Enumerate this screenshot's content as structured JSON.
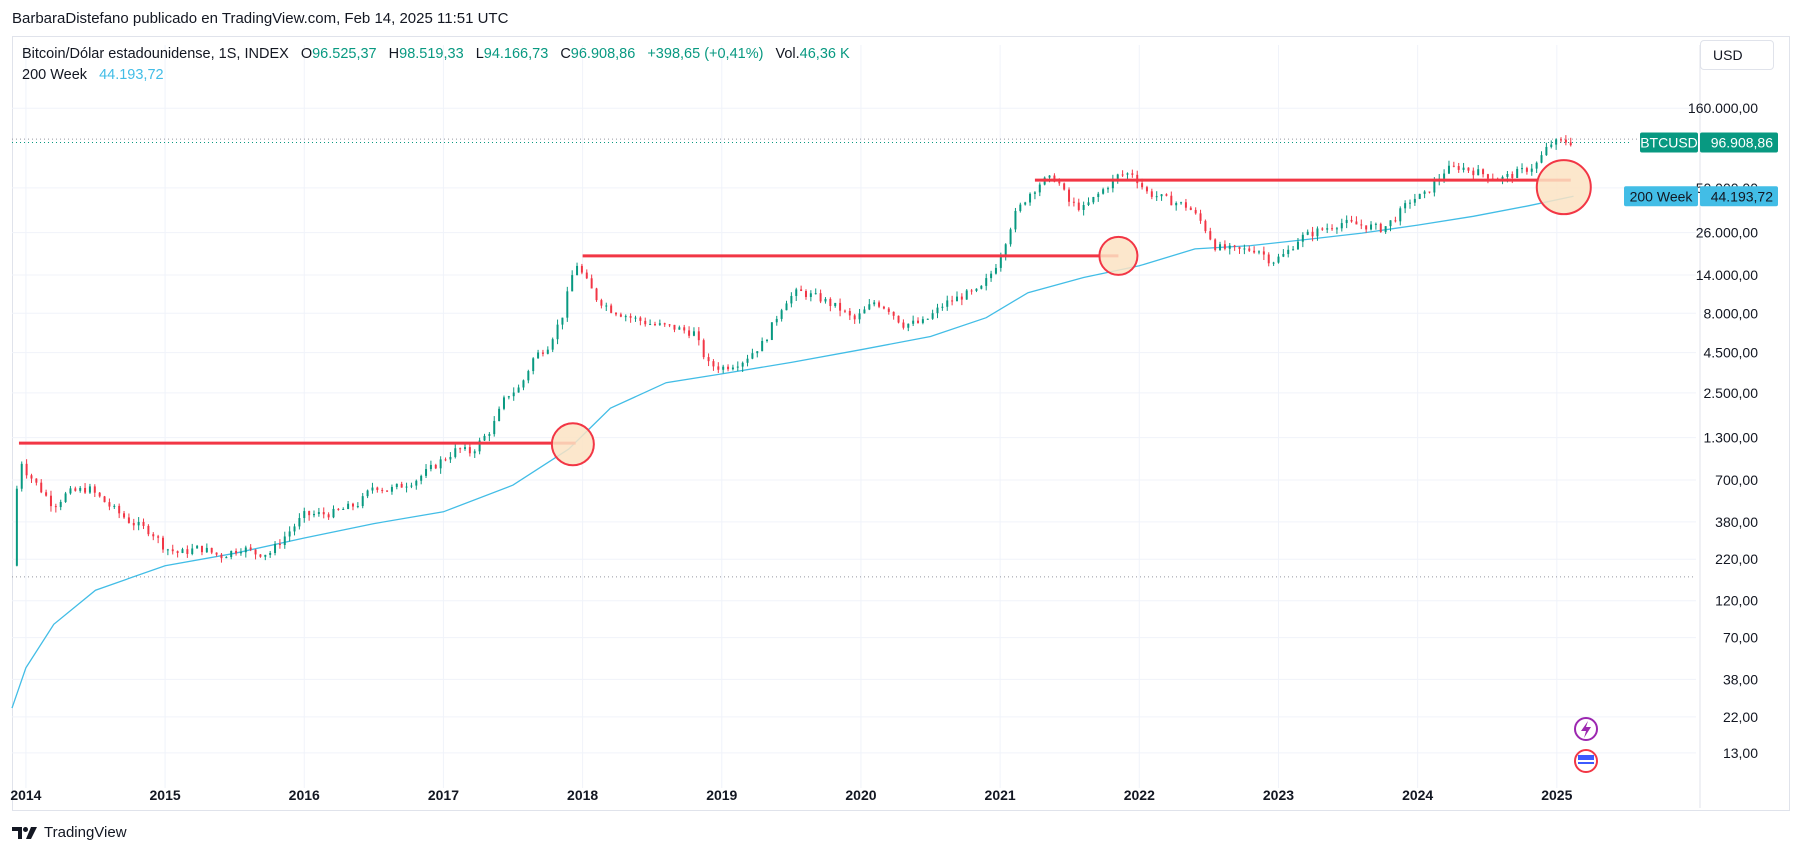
{
  "header": {
    "published": "BarbaraDistefano publicado en TradingView.com, Feb 14, 2025 11:51 UTC"
  },
  "legend": {
    "symbol": "Bitcoin/Dólar estadounidense, 1S, INDEX",
    "o_label": "O",
    "o_value": "96.525,37",
    "h_label": "H",
    "h_value": "98.519,33",
    "l_label": "L",
    "l_value": "94.166,73",
    "c_label": "C",
    "c_value": "96.908,86",
    "change": "+398,65 (+0,41%)",
    "vol_label": "Vol.",
    "vol_value": "46,36 K",
    "ma_label": "200 Week",
    "ma_value": "44.193,72"
  },
  "currency_button": "USD",
  "footer": {
    "brand": "TradingView"
  },
  "colors": {
    "up": "#089981",
    "down": "#f23645",
    "ma": "#42bde6",
    "resistance": "#f23645",
    "circle_fill": "#fbe3c3"
  },
  "chart_data": {
    "type": "line",
    "title": "Bitcoin/Dólar estadounidense, 1S, INDEX",
    "y_scale": "log",
    "ylim": [
      9,
      260000
    ],
    "xlim": [
      2013.9,
      2026.0
    ],
    "y_ticks": [
      {
        "value": 160000,
        "label": "160.000,00"
      },
      {
        "value": 50000,
        "label": "50.000,00"
      },
      {
        "value": 26000,
        "label": "26.000,00"
      },
      {
        "value": 14000,
        "label": "14.000,00"
      },
      {
        "value": 8000,
        "label": "8.000,00"
      },
      {
        "value": 4500,
        "label": "4.500,00"
      },
      {
        "value": 2500,
        "label": "2.500,00"
      },
      {
        "value": 1300,
        "label": "1.300,00"
      },
      {
        "value": 700,
        "label": "700,00"
      },
      {
        "value": 380,
        "label": "380,00"
      },
      {
        "value": 220,
        "label": "220,00"
      },
      {
        "value": 120,
        "label": "120,00"
      },
      {
        "value": 70,
        "label": "70,00"
      },
      {
        "value": 38,
        "label": "38,00"
      },
      {
        "value": 22,
        "label": "22,00"
      },
      {
        "value": 13,
        "label": "13,00"
      }
    ],
    "x_ticks": [
      "2014",
      "2015",
      "2016",
      "2017",
      "2018",
      "2019",
      "2020",
      "2021",
      "2022",
      "2023",
      "2024",
      "2025"
    ],
    "series": [
      {
        "name": "BTCUSD",
        "last_label": "96.908,86",
        "x": [
          2013.9,
          2013.95,
          2014.0,
          2014.1,
          2014.2,
          2014.3,
          2014.45,
          2014.6,
          2014.75,
          2014.9,
          2015.0,
          2015.1,
          2015.25,
          2015.4,
          2015.55,
          2015.65,
          2015.75,
          2015.85,
          2016.0,
          2016.2,
          2016.4,
          2016.5,
          2016.6,
          2016.8,
          2017.0,
          2017.1,
          2017.2,
          2017.35,
          2017.45,
          2017.55,
          2017.65,
          2017.75,
          2017.85,
          2017.95,
          2018.0,
          2018.1,
          2018.2,
          2018.35,
          2018.5,
          2018.65,
          2018.8,
          2018.9,
          2019.0,
          2019.15,
          2019.3,
          2019.45,
          2019.55,
          2019.7,
          2019.85,
          2019.95,
          2020.1,
          2020.2,
          2020.3,
          2020.45,
          2020.6,
          2020.75,
          2020.85,
          2020.95,
          2021.0,
          2021.1,
          2021.2,
          2021.3,
          2021.4,
          2021.5,
          2021.6,
          2021.7,
          2021.85,
          2021.95,
          2022.05,
          2022.2,
          2022.35,
          2022.45,
          2022.55,
          2022.7,
          2022.85,
          2022.95,
          2023.05,
          2023.15,
          2023.3,
          2023.45,
          2023.6,
          2023.75,
          2023.85,
          2023.95,
          2024.05,
          2024.2,
          2024.3,
          2024.45,
          2024.6,
          2024.75,
          2024.85,
          2024.95,
          2025.05,
          2025.12
        ],
        "values": [
          200,
          1000,
          800,
          620,
          480,
          580,
          620,
          480,
          380,
          330,
          260,
          240,
          260,
          230,
          260,
          240,
          240,
          300,
          420,
          430,
          500,
          650,
          600,
          700,
          950,
          1100,
          1050,
          1500,
          2400,
          2700,
          4200,
          5000,
          7500,
          17000,
          14000,
          10000,
          8500,
          7500,
          6800,
          6500,
          6000,
          3800,
          3600,
          4000,
          5200,
          9500,
          11000,
          10000,
          8500,
          7200,
          9500,
          8500,
          6800,
          7000,
          9200,
          10500,
          11000,
          15000,
          18500,
          33000,
          45000,
          55000,
          58000,
          40000,
          37000,
          45000,
          60000,
          62000,
          47000,
          42000,
          38000,
          30000,
          21000,
          20000,
          20500,
          17000,
          19000,
          24000,
          27000,
          30000,
          29000,
          27500,
          33000,
          42000,
          45000,
          65000,
          68000,
          62000,
          57000,
          64000,
          70000,
          95000,
          99000,
          96908.86
        ]
      },
      {
        "name": "200 Week",
        "last_label": "44.193,72",
        "x": [
          2013.9,
          2014.0,
          2014.2,
          2014.5,
          2015.0,
          2015.5,
          2016.0,
          2016.5,
          2017.0,
          2017.5,
          2017.9,
          2018.2,
          2018.6,
          2019.0,
          2019.5,
          2020.0,
          2020.5,
          2020.9,
          2021.2,
          2021.6,
          2022.0,
          2022.4,
          2022.8,
          2023.2,
          2023.6,
          2024.0,
          2024.4,
          2024.8,
          2025.12
        ],
        "values": [
          25,
          45,
          85,
          140,
          200,
          240,
          300,
          370,
          440,
          650,
          1100,
          2000,
          2900,
          3300,
          3900,
          4700,
          5700,
          7500,
          10800,
          13500,
          16000,
          20500,
          21500,
          23500,
          25800,
          29000,
          33000,
          38500,
          44193.72
        ]
      }
    ],
    "annotations": [
      {
        "type": "hline",
        "x_start": 2013.95,
        "x_end": 2017.95,
        "y": 1200
      },
      {
        "type": "hline",
        "x_start": 2018.0,
        "x_end": 2021.85,
        "y": 18500
      },
      {
        "type": "hline",
        "x_start": 2021.25,
        "x_end": 2025.1,
        "y": 56000
      },
      {
        "type": "circle",
        "x": 2017.93,
        "y": 1180
      },
      {
        "type": "circle",
        "x": 2021.85,
        "y": 18500
      },
      {
        "type": "circle",
        "x": 2025.05,
        "y": 50500
      }
    ]
  }
}
